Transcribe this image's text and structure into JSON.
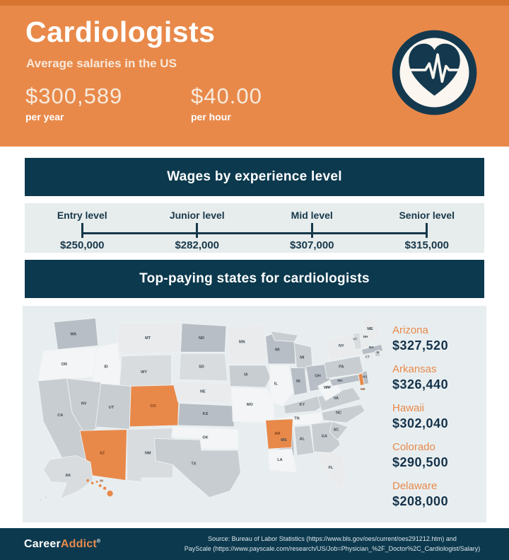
{
  "colors": {
    "orange": "#E8894A",
    "orange_dark_strip": "#D7742F",
    "navy": "#0C394E",
    "timeline_panel": "#E7ECEC",
    "map_panel": "#E8EEF0",
    "cream_text": "#F8EADC"
  },
  "header": {
    "title": "Cardiologists",
    "subtitle": "Average salaries in the US",
    "salaries": [
      {
        "amount": "$300,589",
        "period": "per year"
      },
      {
        "amount": "$40.00",
        "period": "per hour"
      }
    ],
    "icon": "heartbeat-heart-icon"
  },
  "sections": {
    "experience_title": "Wages by experience level",
    "states_title": "Top-paying states for cardiologists"
  },
  "chart_data": [
    {
      "type": "line",
      "title": "Wages by experience level",
      "categories": [
        "Entry level",
        "Junior level",
        "Mid level",
        "Senior level"
      ],
      "values": [
        250000,
        282000,
        307000,
        315000
      ],
      "value_labels": [
        "$250,000",
        "$282,000",
        "$307,000",
        "$315,000"
      ],
      "layout": "horizontal milestone timeline, evenly spaced ticks"
    },
    {
      "type": "heatmap",
      "title": "Top-paying states for cardiologists",
      "map_kind": "us-choropleth",
      "highlight_color": "#E8894A",
      "highlighted_states": [
        "AZ",
        "AR",
        "HI",
        "CO",
        "DE"
      ],
      "states": [
        {
          "name": "Arizona",
          "code": "AZ",
          "value": 327520,
          "value_label": "$327,520"
        },
        {
          "name": "Arkansas",
          "code": "AR",
          "value": 326440,
          "value_label": "$326,440"
        },
        {
          "name": "Hawaii",
          "code": "HI",
          "value": 302040,
          "value_label": "$302,040"
        },
        {
          "name": "Colorado",
          "code": "CO",
          "value": 290500,
          "value_label": "$290,500"
        },
        {
          "name": "Delaware",
          "code": "DE",
          "value": 208000,
          "value_label": "$208,000"
        }
      ]
    }
  ],
  "map": {
    "palette": {
      "xl": "#F4F5F6",
      "l": "#E9EBED",
      "lm": "#D8DCDF",
      "m": "#C8CDD2",
      "md": "#B8BEC5",
      "hl": "#E8894A"
    },
    "stroke": "#EDF1F2",
    "label_color": "#3D4A52",
    "highlight_label_color": "#7E3A15",
    "states": [
      {
        "code": "WA",
        "fill": "md",
        "label": [
          56,
          36
        ],
        "polys": [
          "26,16 90,10 94,52 32,58"
        ]
      },
      {
        "code": "OR",
        "fill": "xl",
        "label": [
          42,
          82
        ],
        "polys": [
          "10,60 92,54 86,100 2,106"
        ]
      },
      {
        "code": "CA",
        "fill": "m",
        "label": [
          36,
          160
        ],
        "polys": [
          "2,106 46,102 54,154 92,206 86,238 42,230 10,168"
        ]
      },
      {
        "code": "ID",
        "fill": "xl",
        "label": [
          106,
          86
        ],
        "polys": [
          "92,54 124,48 132,120 86,124 86,100"
        ]
      },
      {
        "code": "NV",
        "fill": "m",
        "label": [
          72,
          142
        ],
        "polys": [
          "46,102 98,108 92,178 74,188 54,154"
        ]
      },
      {
        "code": "MT",
        "fill": "l",
        "label": [
          170,
          42
        ],
        "polys": [
          "124,18 220,16 220,62 130,66 124,48"
        ]
      },
      {
        "code": "WY",
        "fill": "lm",
        "label": [
          164,
          94
        ],
        "polys": [
          "130,68 206,66 206,118 126,120"
        ]
      },
      {
        "code": "UT",
        "fill": "m",
        "label": [
          114,
          148
        ],
        "polys": [
          "98,110 144,114 142,180 90,176"
        ]
      },
      {
        "code": "CO",
        "fill": "hl",
        "label": [
          178,
          146
        ],
        "polys": [
          "144,114 218,112 216,174 142,176"
        ],
        "hlLabel": true
      },
      {
        "code": "AZ",
        "fill": "hl",
        "label": [
          100,
          218
        ],
        "polys": [
          "66,182 138,180 136,258 80,250"
        ],
        "hlLabel": true
      },
      {
        "code": "NM",
        "fill": "lm",
        "label": [
          170,
          218
        ],
        "polys": [
          "138,180 210,178 208,254 160,254 160,260 138,258"
        ]
      },
      {
        "code": "ND",
        "fill": "md",
        "label": [
          252,
          42
        ],
        "polys": [
          "222,18 290,22 288,62 220,62"
        ]
      },
      {
        "code": "SD",
        "fill": "lm",
        "label": [
          252,
          86
        ],
        "polys": [
          "220,64 288,64 292,106 218,104"
        ]
      },
      {
        "code": "NE",
        "fill": "l",
        "label": [
          254,
          124
        ],
        "polys": [
          "208,106 296,110 298,140 216,138"
        ]
      },
      {
        "code": "KS",
        "fill": "md",
        "label": [
          258,
          158
        ],
        "polys": [
          "218,140 302,144 302,176 216,174"
        ]
      },
      {
        "code": "OK",
        "fill": "xl",
        "label": [
          258,
          194
        ],
        "polys": [
          "208,176 308,180 308,210 252,210 250,194 206,192"
        ]
      },
      {
        "code": "TX",
        "fill": "m",
        "label": [
          240,
          234
        ],
        "polys": [
          "180,194 250,196 252,212 308,212 312,246 296,274 264,284 236,260 208,234 182,228"
        ]
      },
      {
        "code": "MN",
        "fill": "l",
        "label": [
          314,
          48
        ],
        "polys": [
          "292,24 346,20 354,64 346,80 294,80"
        ]
      },
      {
        "code": "IA",
        "fill": "m",
        "label": [
          320,
          98
        ],
        "polys": [
          "294,82 350,82 358,100 350,116 296,114"
        ]
      },
      {
        "code": "MO",
        "fill": "xl",
        "label": [
          326,
          144
        ],
        "polys": [
          "298,116 352,118 362,136 364,164 350,170 300,168"
        ]
      },
      {
        "code": "WI",
        "fill": "md",
        "label": [
          368,
          60
        ],
        "polys": [
          "350,38 372,30 394,42 396,80 354,80"
        ]
      },
      {
        "code": "IL",
        "fill": "xl",
        "label": [
          366,
          112
        ],
        "polys": [
          "356,82 386,82 392,124 376,144 358,138"
        ]
      },
      {
        "code": "MI",
        "fill": "m",
        "label": [
          406,
          72
        ],
        "polys": [
          "358,30 400,36 394,46 364,44",
          "394,48 420,54 422,90 398,92"
        ]
      },
      {
        "code": "IN",
        "fill": "md",
        "label": [
          400,
          108
        ],
        "polys": [
          "388,86 410,86 414,124 394,128"
        ]
      },
      {
        "code": "OH",
        "fill": "md",
        "label": [
          430,
          100
        ],
        "polys": [
          "412,84 446,80 450,116 418,122"
        ]
      },
      {
        "code": "KY",
        "fill": "m",
        "label": [
          406,
          144
        ],
        "polys": [
          "378,144 434,128 454,134 426,152 380,156"
        ]
      },
      {
        "code": "TN",
        "fill": "xl",
        "label": [
          398,
          165
        ],
        "polys": [
          "364,164 434,154 446,162 426,172 366,174"
        ]
      },
      {
        "code": "MS",
        "fill": "md",
        "label": [
          378,
          198
        ],
        "polys": [
          "366,176 392,176 394,220 372,224"
        ]
      },
      {
        "code": "AL",
        "fill": "m",
        "label": [
          406,
          196
        ],
        "polys": [
          "394,176 418,174 424,216 398,220"
        ]
      },
      {
        "code": "GA",
        "fill": "m",
        "label": [
          440,
          192
        ],
        "polys": [
          "420,172 454,168 464,204 450,216 424,214"
        ]
      },
      {
        "code": "FL",
        "fill": "l",
        "label": [
          450,
          240
        ],
        "polys": [
          "426,218 460,214 468,222 474,254 464,272 452,258 430,226"
        ]
      },
      {
        "code": "AR",
        "fill": "hl",
        "label": [
          368,
          188
        ],
        "polys": [
          "350,166 392,164 390,208 354,210"
        ],
        "hlLabel": true
      },
      {
        "code": "LA",
        "fill": "xl",
        "label": [
          372,
          228
        ],
        "polys": [
          "354,212 390,210 398,246 356,242"
        ]
      },
      {
        "code": "SC",
        "fill": "m",
        "label": [
          458,
          182
        ],
        "polys": [
          "452,168 476,176 460,196 448,184"
        ]
      },
      {
        "code": "NC",
        "fill": "m",
        "label": [
          462,
          156
        ],
        "polys": [
          "436,154 496,142 502,152 474,170 438,166"
        ]
      },
      {
        "code": "VA",
        "fill": "m",
        "label": [
          458,
          134
        ],
        "polys": [
          "430,130 484,116 496,134 436,152"
        ]
      },
      {
        "code": "WV",
        "fill": "xl",
        "label": [
          444,
          118
        ],
        "polys": [
          "430,114 454,102 466,122 442,136"
        ]
      },
      {
        "code": "PA",
        "fill": "m",
        "label": [
          466,
          86
        ],
        "polys": [
          "440,78 494,68 500,94 444,102"
        ]
      },
      {
        "code": "NY",
        "fill": "l",
        "label": [
          466,
          54
        ],
        "polys": [
          "444,44 484,34 502,58 496,66 448,74"
        ]
      },
      {
        "code": "ME",
        "fill": "l",
        "label": [
          510,
          28
        ],
        "polys": [
          "496,12 512,6 528,34 508,48"
        ]
      },
      {
        "code": "VT",
        "fill": "lm",
        "label": [
          487,
          44
        ],
        "ls": 5,
        "polys": [
          "484,34 494,32 497,56 487,58"
        ]
      },
      {
        "code": "NH",
        "fill": "l",
        "label": [
          503,
          40
        ],
        "ls": 5,
        "polys": [
          "494,32 505,29 511,54 497,56"
        ]
      },
      {
        "code": "MA",
        "fill": "md",
        "label": [
          512,
          56
        ],
        "ls": 5,
        "polys": [
          "497,58 527,50 530,60 499,66"
        ]
      },
      {
        "code": "CT",
        "fill": "l",
        "label": [
          506,
          71
        ],
        "ls": 5,
        "polys": [
          "499,66 515,63 517,76 501,78"
        ]
      },
      {
        "code": "RI",
        "fill": "m",
        "label": [
          522,
          64
        ],
        "ls": 4,
        "polys": [
          "517,61 524,59 526,68 518,69"
        ]
      },
      {
        "code": "NJ",
        "fill": "md",
        "label": [
          502,
          101
        ],
        "ls": 5,
        "polys": [
          "495,94 505,90 508,110 498,112"
        ]
      },
      {
        "code": "MD",
        "fill": "md",
        "label": [
          464,
          107
        ],
        "ls": 5,
        "polys": [
          "448,104 492,96 494,106 452,114"
        ]
      },
      {
        "code": "DE",
        "fill": "hl",
        "label": [
          499,
          120
        ],
        "ls": 5,
        "polys": [
          "492,96 498,94 501,112 495,113"
        ],
        "hlLabel": true
      },
      {
        "code": "DC",
        "fill": "",
        "label": [
          447,
          117
        ],
        "ls": 5,
        "polys": []
      },
      {
        "code": "AK",
        "fill": "lm",
        "label": [
          48,
          252
        ],
        "polys": [
          "20,226 60,220 82,230 86,258 64,274 36,286 46,262 22,260 10,242"
        ],
        "circles": [
          [
            6,
            288,
            1.2
          ],
          [
            14,
            284,
            1.4
          ]
        ]
      },
      {
        "code": "HI",
        "fill": "hl",
        "label": [
          99,
          260
        ],
        "ls": 5,
        "hlLabel": true,
        "polys": [],
        "circles": [
          [
            78,
            258,
            2
          ],
          [
            85,
            262,
            2
          ],
          [
            92,
            260,
            1.6
          ],
          [
            97,
            266,
            2.2
          ],
          [
            104,
            270,
            2.4
          ],
          [
            112,
            278,
            4.5
          ]
        ]
      }
    ]
  },
  "footer": {
    "logo_career": "Career",
    "logo_addict": "Addict",
    "trademark": "®",
    "source_line1": "Source: Bureau of Labor Statistics (https://www.bls.gov/oes/current/oes291212.htm) and",
    "source_line2": "PayScale (https://www.payscale.com/research/US/Job=Physician_%2F_Doctor%2C_Cardiologist/Salary)"
  }
}
